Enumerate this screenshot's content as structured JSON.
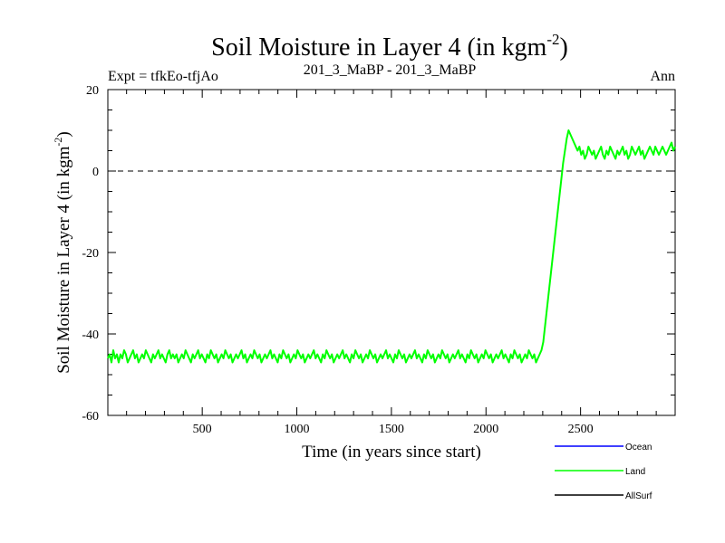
{
  "chart_data": {
    "type": "line",
    "title": "Soil Moisture in Layer 4 (in kgm",
    "title_superscript": "-2",
    "title_close": ")",
    "left_annotation": "Expt = tfkEo-tfjAo",
    "center_annotation": "201_3_MaBP - 201_3_MaBP",
    "right_annotation": "Ann",
    "xlabel": "Time (in years since start)",
    "ylabel": "Soil Moisture in Layer 4 (in kgm",
    "ylabel_superscript": "-2",
    "ylabel_close": ")",
    "xlim": [
      1,
      3000
    ],
    "ylim": [
      -60,
      20
    ],
    "x_ticks": [
      500,
      1000,
      1500,
      2000,
      2500
    ],
    "x_tick_labels": [
      "500",
      "1000",
      "1500",
      "2000",
      "2500"
    ],
    "y_ticks": [
      -60,
      -40,
      -20,
      0,
      20
    ],
    "y_tick_labels": [
      "-60",
      "-40",
      "-20",
      "0",
      "20"
    ],
    "reference_line": {
      "y": 0,
      "style": "dashed"
    },
    "legend_placement": "bottom-right",
    "series": [
      {
        "name": "Ocean",
        "color": "#0000ff",
        "values": []
      },
      {
        "name": "Land",
        "color": "#00ff00",
        "x_start": 1,
        "x_end": 3000,
        "values": [
          -46,
          -45,
          -47,
          -44,
          -46,
          -45,
          -47,
          -45,
          -46,
          -44,
          -45,
          -47,
          -46,
          -45,
          -44,
          -46,
          -45,
          -47,
          -46,
          -45,
          -46,
          -44,
          -45,
          -46,
          -47,
          -45,
          -46,
          -45,
          -44,
          -46,
          -45,
          -46,
          -47,
          -45,
          -44,
          -46,
          -45,
          -46,
          -45,
          -47,
          -46,
          -45,
          -46,
          -44,
          -45,
          -46,
          -47,
          -45,
          -46,
          -45,
          -44,
          -46,
          -45,
          -46,
          -47,
          -45,
          -46,
          -44,
          -45,
          -46,
          -45,
          -47,
          -46,
          -45,
          -46,
          -44,
          -45,
          -46,
          -45,
          -47,
          -46,
          -45,
          -46,
          -45,
          -44,
          -46,
          -45,
          -47,
          -46,
          -45,
          -46,
          -44,
          -45,
          -46,
          -45,
          -47,
          -46,
          -45,
          -46,
          -45,
          -44,
          -46,
          -45,
          -46,
          -47,
          -45,
          -46,
          -44,
          -45,
          -46,
          -45,
          -47,
          -46,
          -45,
          -46,
          -44,
          -45,
          -46,
          -45,
          -47,
          -46,
          -45,
          -46,
          -45,
          -44,
          -46,
          -45,
          -46,
          -47,
          -45,
          -46,
          -44,
          -45,
          -46,
          -45,
          -47,
          -46,
          -45,
          -46,
          -45,
          -44,
          -46,
          -45,
          -46,
          -47,
          -45,
          -46,
          -44,
          -45,
          -46,
          -45,
          -47,
          -46,
          -45,
          -46,
          -44,
          -45,
          -46,
          -45,
          -47,
          -46,
          -45,
          -46,
          -45,
          -44,
          -46,
          -45,
          -46,
          -47,
          -45,
          -46,
          -44,
          -45,
          -46,
          -45,
          -47,
          -46,
          -45,
          -46,
          -45,
          -44,
          -46,
          -45,
          -46,
          -47,
          -45,
          -46,
          -44,
          -45,
          -46,
          -45,
          -47,
          -46,
          -45,
          -46,
          -44,
          -45,
          -46,
          -45,
          -47,
          -46,
          -45,
          -46,
          -45,
          -44,
          -46,
          -45,
          -46,
          -47,
          -45,
          -46,
          -44,
          -45,
          -46,
          -45,
          -47,
          -46,
          -45,
          -46,
          -44,
          -45,
          -46,
          -45,
          -47,
          -46,
          -45,
          -46,
          -45,
          -44,
          -46,
          -45,
          -46,
          -47,
          -45,
          -46,
          -44,
          -45,
          -46,
          -45,
          -47,
          -46,
          -45,
          -46,
          -44,
          -45,
          -46,
          -45,
          -47,
          -46,
          -45,
          -44,
          -42,
          -38,
          -34,
          -30,
          -26,
          -22,
          -18,
          -14,
          -10,
          -6,
          -2,
          2,
          5,
          8,
          10,
          9,
          8,
          7,
          6,
          5,
          6,
          4,
          5,
          3,
          4,
          6,
          5,
          4,
          5,
          3,
          4,
          5,
          6,
          4,
          3,
          5,
          4,
          6,
          5,
          4,
          3,
          5,
          4,
          5,
          6,
          4,
          5,
          3,
          4,
          6,
          5,
          4,
          5,
          6,
          4,
          5,
          3,
          4,
          5,
          6,
          5,
          4,
          6,
          5,
          4,
          5,
          6,
          5,
          4,
          5,
          6,
          7,
          5,
          6
        ]
      },
      {
        "name": "AllSurf",
        "color": "#000000",
        "values": []
      }
    ]
  }
}
